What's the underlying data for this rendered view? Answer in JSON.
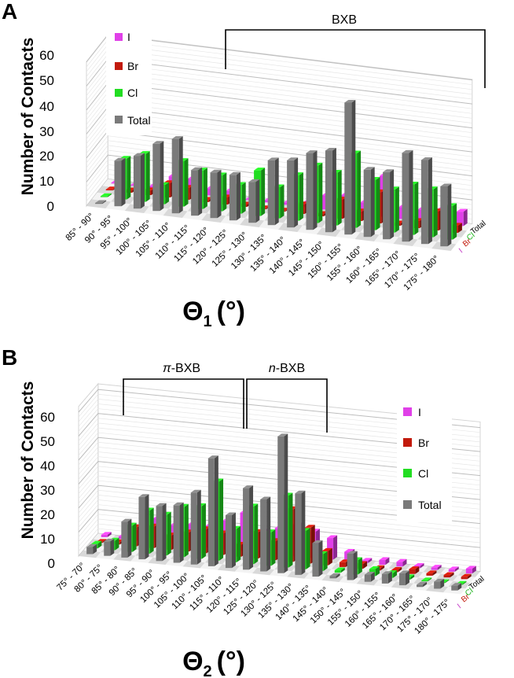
{
  "chart_data": [
    {
      "panel": "A",
      "type": "bar",
      "title": "",
      "xlabel": "Θ",
      "xlabel_sub": "1",
      "xlabel_unit": "(°)",
      "ylabel": "Number of Contacts",
      "ylim": [
        0,
        60
      ],
      "yticks": [
        "0",
        "10",
        "20",
        "30",
        "40",
        "50",
        "60"
      ],
      "categories": [
        "85° - 90°",
        "90° - 95°",
        "95° - 100°",
        "100° - 105°",
        "105° - 110°",
        "110° - 115°",
        "115° - 120°",
        "120° - 125°",
        "125° - 130°",
        "130° - 135°",
        "135° - 140°",
        "140° - 145°",
        "145° - 150°",
        "150° - 155°",
        "155° - 160°",
        "160° - 165°",
        "165° - 170°",
        "170° - 175°",
        "175° - 180°"
      ],
      "series": [
        {
          "name": "I",
          "color": "#e040e8",
          "values": [
            0,
            0,
            1,
            6,
            6,
            3,
            3,
            0,
            1,
            1,
            2,
            6,
            7,
            5,
            17,
            5,
            5,
            6,
            6
          ]
        },
        {
          "name": "Br",
          "color": "#c21a0c",
          "values": [
            0,
            1,
            2,
            6,
            5,
            1,
            3,
            1,
            0,
            0,
            4,
            1,
            8,
            4,
            13,
            1,
            3,
            8,
            3
          ]
        },
        {
          "name": "Cl",
          "color": "#22dd22",
          "values": [
            0,
            17,
            20,
            8,
            19,
            16,
            15,
            12,
            19,
            13,
            19,
            24,
            22,
            31,
            21,
            18,
            21,
            20,
            14
          ]
        },
        {
          "name": "Total",
          "color": "#7a7a7a",
          "values": [
            0,
            19,
            22,
            28,
            31,
            19,
            19,
            19,
            17,
            27,
            28,
            32,
            34,
            55,
            28,
            28,
            37,
            35,
            25
          ]
        }
      ],
      "legend": {
        "position": "top-left",
        "entries": [
          "I",
          "Br",
          "Cl",
          "Total"
        ]
      },
      "depth_labels": [
        "Total",
        "Cl",
        "Br",
        "I"
      ],
      "annotations": [
        {
          "label": "BXB"
        }
      ]
    },
    {
      "panel": "B",
      "type": "bar",
      "title": "",
      "xlabel": "Θ",
      "xlabel_sub": "2",
      "xlabel_unit": "(°)",
      "ylabel": "Number of Contacts",
      "ylim": [
        0,
        60
      ],
      "yticks": [
        "0",
        "10",
        "20",
        "30",
        "40",
        "50",
        "60"
      ],
      "categories": [
        "75° - 70°",
        "80° - 75°",
        "85° - 80°",
        "90° - 85°",
        "95° - 90°",
        "100° - 95°",
        "105° - 100°",
        "110° - 105°",
        "115° - 110°",
        "120° - 115°",
        "125° - 120°",
        "130° - 125°",
        "135° - 130°",
        "140° - 135°",
        "145° - 140°",
        "150° - 145°",
        "155° - 150°",
        "160° - 155°",
        "165° - 160°",
        "170° - 165°",
        "175° - 170°",
        "180° - 175°"
      ],
      "series": [
        {
          "name": "I",
          "color": "#e040e8",
          "values": [
            1,
            1,
            4,
            10,
            8,
            9,
            9,
            12,
            16,
            9,
            11,
            13,
            11,
            9,
            4,
            1,
            2,
            2,
            1,
            1,
            1,
            2
          ]
        },
        {
          "name": "Br",
          "color": "#c21a0c",
          "values": [
            0,
            1,
            8,
            9,
            6,
            8,
            10,
            9,
            5,
            11,
            8,
            22,
            15,
            6,
            2,
            2,
            1,
            1,
            2,
            1,
            1,
            1
          ]
        },
        {
          "name": "Cl",
          "color": "#22dd22",
          "values": [
            2,
            4,
            11,
            18,
            17,
            21,
            22,
            33,
            14,
            24,
            14,
            30,
            16,
            7,
            1,
            6,
            3,
            2,
            1,
            0,
            0,
            0
          ]
        },
        {
          "name": "Total",
          "color": "#7a7a7a",
          "values": [
            3,
            6,
            15,
            26,
            23,
            24,
            30,
            45,
            22,
            34,
            30,
            57,
            34,
            14,
            1,
            11,
            3,
            4,
            5,
            1,
            3,
            2
          ]
        }
      ],
      "legend": {
        "position": "right",
        "entries": [
          "I",
          "Br",
          "Cl",
          "Total"
        ]
      },
      "depth_labels": [
        "Total",
        "Cl",
        "Br",
        "I"
      ],
      "annotations": [
        {
          "label_prefix": "π",
          "label_suffix": "-BXB"
        },
        {
          "label_prefix": "n",
          "label_suffix": "-BXB"
        }
      ]
    }
  ]
}
